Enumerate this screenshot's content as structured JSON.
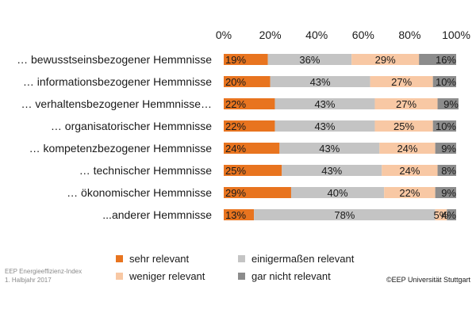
{
  "chart_data": {
    "type": "bar",
    "orientation": "horizontal",
    "stacked": true,
    "categories": [
      "… bewusstseinsbezogener Hemmnisse",
      "… informationsbezogener Hemmnisse",
      "… verhaltensbezogener Hemmnisse…",
      "… organisatorischer Hemmnisse",
      "… kompetenzbezogener Hemmnisse",
      "… technischer Hemmnisse",
      "… ökonomischer Hemmnisse",
      "...anderer Hemmnisse"
    ],
    "series": [
      {
        "name": "sehr relevant",
        "color": "#e8741f",
        "values": [
          19,
          20,
          22,
          22,
          24,
          25,
          29,
          13
        ],
        "labels": [
          "19%",
          "20%",
          "22%",
          "22%",
          "24%",
          "25%",
          "29%",
          "13%"
        ]
      },
      {
        "name": "einigermaßen relevant",
        "color": "#c4c4c4",
        "values": [
          36,
          43,
          43,
          43,
          43,
          43,
          40,
          78
        ],
        "labels": [
          "36%",
          "43%",
          "43%",
          "43%",
          "43%",
          "43%",
          "40%",
          "78%"
        ]
      },
      {
        "name": "weniger relevant",
        "color": "#f8c8a4",
        "values": [
          29,
          27,
          27,
          25,
          24,
          24,
          22,
          5
        ],
        "labels": [
          "29%",
          "27%",
          "27%",
          "25%",
          "24%",
          "24%",
          "22%",
          "5%"
        ]
      },
      {
        "name": "gar nicht relevant",
        "color": "#8c8c8c",
        "values": [
          16,
          10,
          9,
          10,
          9,
          8,
          9,
          4
        ],
        "labels": [
          "16%",
          "10%",
          "9%",
          "10%",
          "9%",
          "8%",
          "9%",
          "4%"
        ]
      }
    ],
    "xaxis": {
      "ticks": [
        0,
        20,
        40,
        60,
        80,
        100
      ],
      "tick_labels": [
        "0%",
        "20%",
        "40%",
        "60%",
        "80%",
        "100%"
      ],
      "range": [
        0,
        100
      ],
      "position": "top"
    },
    "grid": false,
    "legend_position": "bottom",
    "title": "",
    "xlabel": "",
    "ylabel": ""
  },
  "footnote": {
    "line1": "EEP Energieeffizienz-Index",
    "line2": "1. Halbjahr 2017"
  },
  "copyright": "©EEP Universität Stuttgart"
}
